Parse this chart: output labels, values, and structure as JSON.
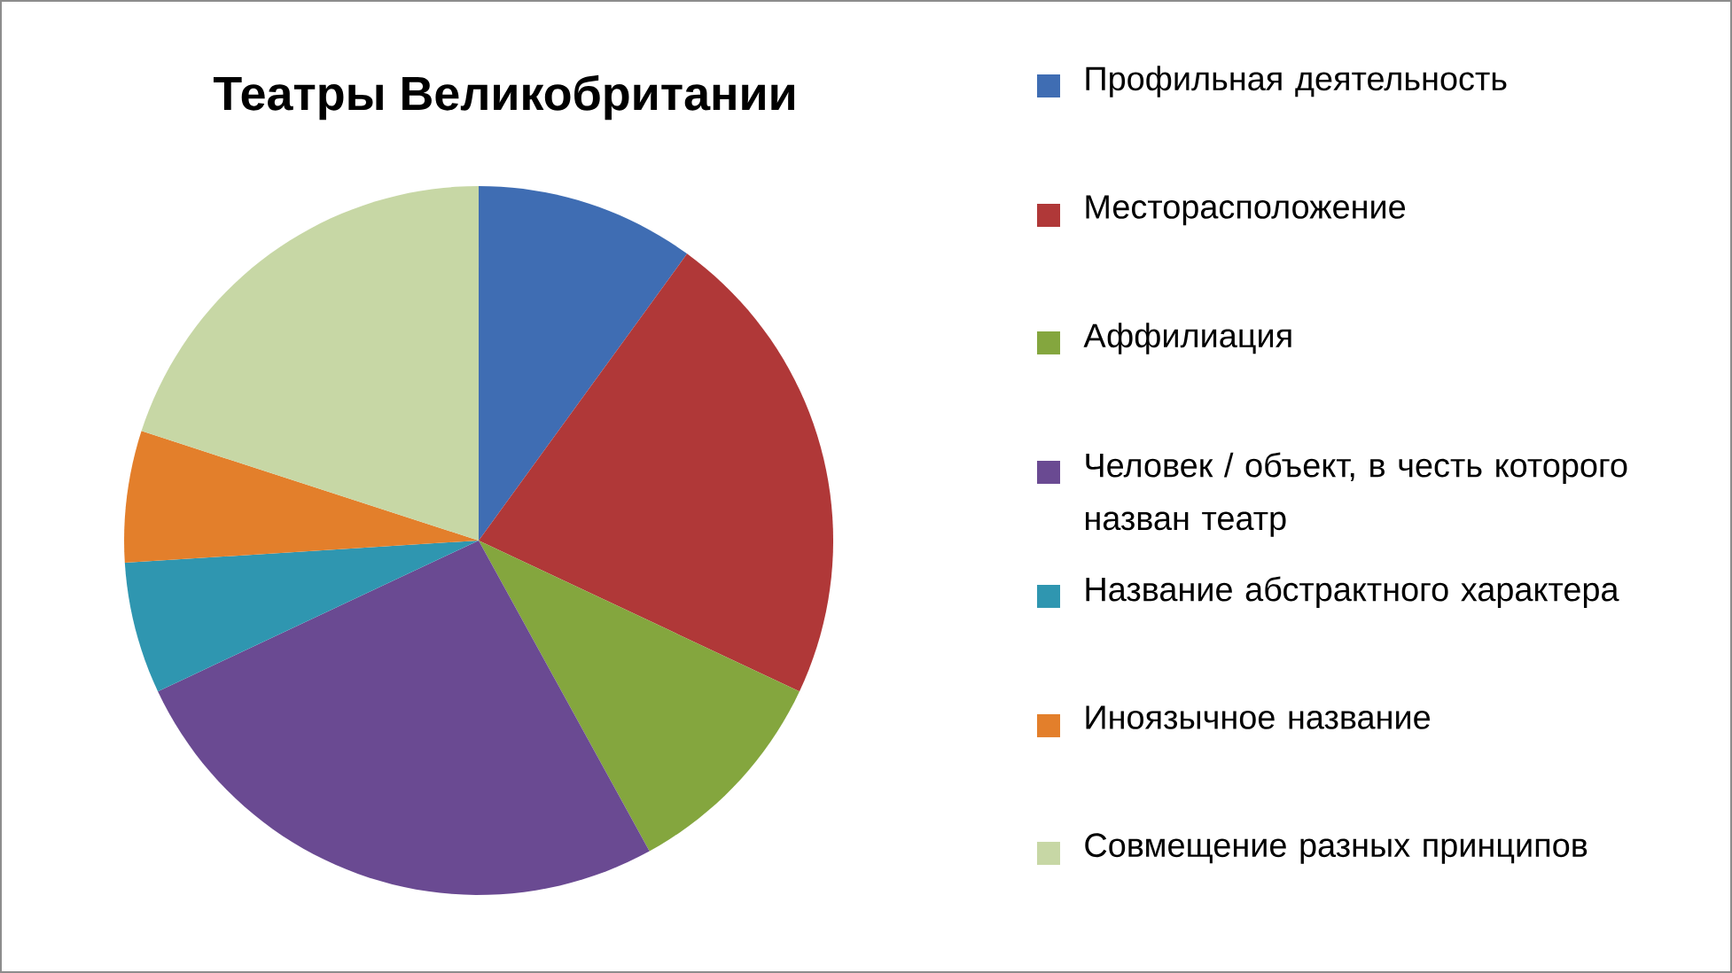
{
  "chart_data": {
    "type": "pie",
    "title": "Театры Великобритании",
    "categories": [
      "Профильная деятельность",
      "Месторасположение",
      "Аффилиация",
      "Человек / объект, в честь которого назван театр",
      "Название абстрактного характера",
      "Иноязычное название",
      "Совмещение разных принципов"
    ],
    "values": [
      10,
      22,
      10,
      26,
      6,
      6,
      20
    ],
    "colors": [
      "#3f6db3",
      "#b03838",
      "#84a63e",
      "#6a4a92",
      "#2f96b0",
      "#e37f2b",
      "#c7d7a5"
    ],
    "legend": "right"
  }
}
